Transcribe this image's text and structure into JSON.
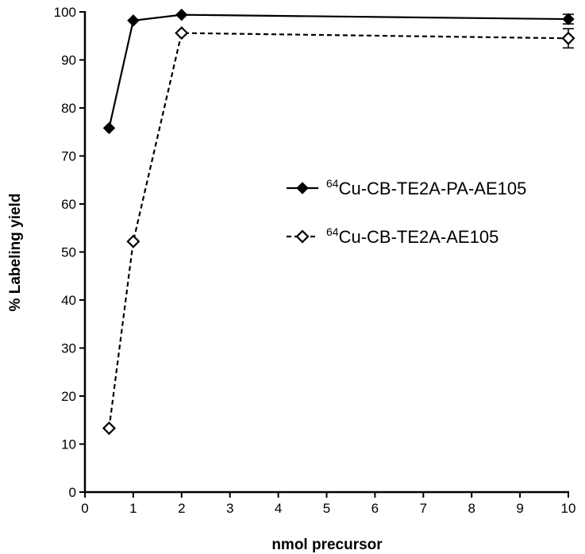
{
  "chart_data": {
    "type": "line",
    "xlabel": "nmol precursor",
    "ylabel": "% Labeling yield",
    "xlim": [
      0,
      10
    ],
    "ylim": [
      0,
      100
    ],
    "x_ticks": [
      "0",
      "1",
      "2",
      "3",
      "4",
      "5",
      "6",
      "7",
      "8",
      "9",
      "10"
    ],
    "y_ticks": [
      "0",
      "10",
      "20",
      "30",
      "40",
      "50",
      "60",
      "70",
      "80",
      "90",
      "100"
    ],
    "grid": false,
    "legend_position": "right-middle",
    "series": [
      {
        "name_superscript": "64",
        "name_text": "Cu-CB-TE2A-PA-AE105",
        "marker": "filled-diamond",
        "line_style": "solid",
        "color": "#000000",
        "x": [
          0.5,
          1,
          2,
          10
        ],
        "y": [
          75.8,
          98.2,
          99.4,
          98.5
        ],
        "error": [
          0,
          0,
          0,
          1.0
        ]
      },
      {
        "name_superscript": "64",
        "name_text": "Cu-CB-TE2A-AE105",
        "marker": "open-diamond",
        "line_style": "dashed",
        "color": "#000000",
        "x": [
          0.5,
          1,
          2,
          10
        ],
        "y": [
          13.3,
          52.2,
          95.6,
          94.5
        ],
        "error": [
          0,
          0,
          0,
          2.0
        ]
      }
    ]
  }
}
